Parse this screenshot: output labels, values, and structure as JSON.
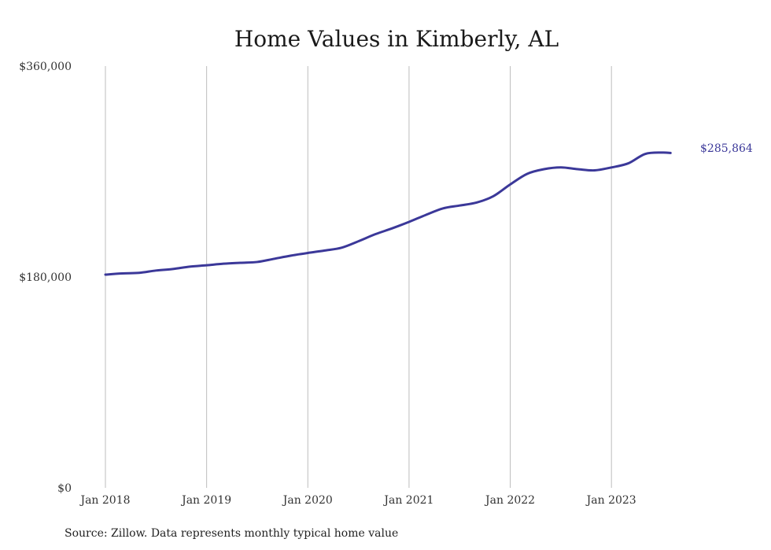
{
  "colors": {
    "line": "#3b3899",
    "grid": "#bdbdbd",
    "text": "#333333"
  },
  "chart_data": {
    "type": "line",
    "title": "Home Values in Kimberly, AL",
    "source": "Source: Zillow. Data represents monthly typical home value",
    "ylim": [
      0,
      360000
    ],
    "y_ticks": [
      {
        "value": 0,
        "label": "$0"
      },
      {
        "value": 180000,
        "label": "$180,000"
      },
      {
        "value": 360000,
        "label": "$360,000"
      }
    ],
    "x_ticks": [
      "Jan 2018",
      "Jan 2019",
      "Jan 2020",
      "Jan 2021",
      "Jan 2022",
      "Jan 2023"
    ],
    "grid": "vertical",
    "end_label": "$285,864",
    "series": [
      {
        "values": [
          [
            0,
            182000
          ],
          [
            2,
            183000
          ],
          [
            4,
            183500
          ],
          [
            6,
            185500
          ],
          [
            8,
            186800
          ],
          [
            10,
            188800
          ],
          [
            12,
            190000
          ],
          [
            14,
            191300
          ],
          [
            16,
            192100
          ],
          [
            18,
            192800
          ],
          [
            20,
            195500
          ],
          [
            22,
            198200
          ],
          [
            24,
            200500
          ],
          [
            26,
            202600
          ],
          [
            28,
            205000
          ],
          [
            30,
            210500
          ],
          [
            32,
            216500
          ],
          [
            34,
            221500
          ],
          [
            36,
            227000
          ],
          [
            38,
            233000
          ],
          [
            40,
            238500
          ],
          [
            42,
            241000
          ],
          [
            44,
            243500
          ],
          [
            46,
            249000
          ],
          [
            48,
            259000
          ],
          [
            50,
            268000
          ],
          [
            52,
            272000
          ],
          [
            54,
            273500
          ],
          [
            56,
            272000
          ],
          [
            58,
            271000
          ],
          [
            60,
            273500
          ],
          [
            62,
            277000
          ],
          [
            64,
            285000
          ],
          [
            66,
            286200
          ],
          [
            67,
            285864
          ]
        ]
      }
    ]
  }
}
